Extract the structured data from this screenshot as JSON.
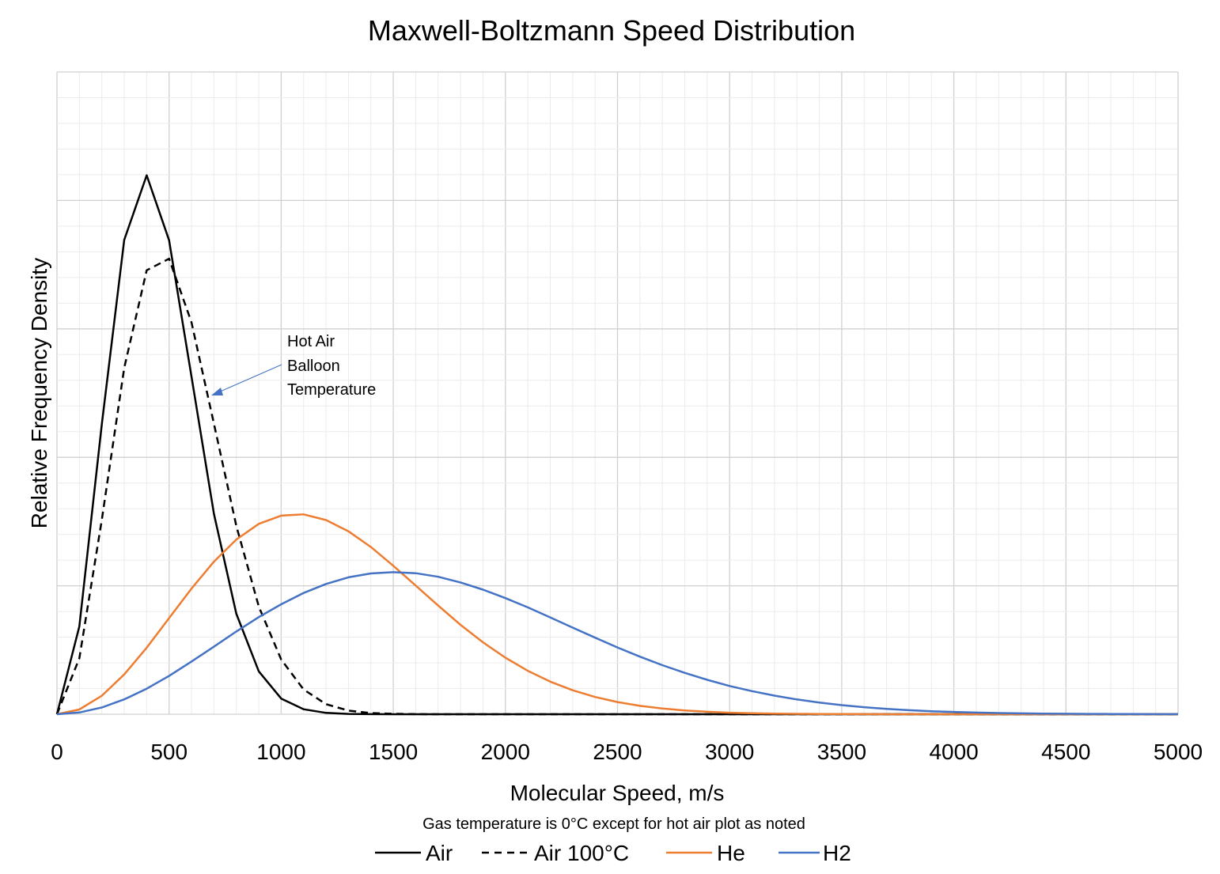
{
  "chart_data": {
    "type": "line",
    "title": "Maxwell-Boltzmann Speed Distribution",
    "xlabel": "Molecular Speed, m/s",
    "ylabel": "Relative Frequency Density",
    "note": "Gas temperature is 0°C except for hot air plot as noted",
    "xlim": [
      0,
      5000
    ],
    "ylim": [
      0,
      0.0025
    ],
    "x_major_step": 500,
    "x_minor_step": 100,
    "y_major_step": 0.0005,
    "y_minor_step": 0.0001,
    "grid": true,
    "y_tick_labels_shown": false,
    "xticks": [
      "0",
      "500",
      "1000",
      "1500",
      "2000",
      "2500",
      "3000",
      "3500",
      "4000",
      "4500",
      "5000"
    ],
    "legend_position": "bottom",
    "annotation": {
      "lines": [
        "Hot Air",
        "Balloon",
        "Temperature"
      ],
      "points_to_series": "Air 100°C",
      "arrow_color": "#4472c4"
    },
    "series": [
      {
        "name": "Air",
        "color": "#000000",
        "dash": "solid",
        "points": [
          [
            0,
            0
          ],
          [
            100,
            0.000342
          ],
          [
            200,
            0.001129
          ],
          [
            300,
            0.001846
          ],
          [
            400,
            0.002098
          ],
          [
            500,
            0.001845
          ],
          [
            600,
            0.001315
          ],
          [
            700,
            0.00078
          ],
          [
            800,
            0.000391
          ],
          [
            900,
            0.000167
          ],
          [
            1000,
            6.11e-05
          ],
          [
            1100,
            1.93e-05
          ],
          [
            1200,
            5.3e-06
          ],
          [
            1300,
            1.3e-06
          ],
          [
            1400,
            3e-07
          ],
          [
            1500,
            0
          ],
          [
            5000,
            0
          ]
        ]
      },
      {
        "name": "Air 100°C",
        "color": "#000000",
        "dash": "dashed",
        "points": [
          [
            0,
            0
          ],
          [
            100,
            0.000218
          ],
          [
            200,
            0.000757
          ],
          [
            300,
            0.001348
          ],
          [
            400,
            0.001728
          ],
          [
            500,
            0.001773
          ],
          [
            600,
            0.001526
          ],
          [
            700,
            0.001131
          ],
          [
            800,
            0.000733
          ],
          [
            900,
            0.000419
          ],
          [
            1000,
            0.000213
          ],
          [
            1100,
            9.63e-05
          ],
          [
            1200,
            3.91e-05
          ],
          [
            1300,
            1.43e-05
          ],
          [
            1400,
            4.7e-06
          ],
          [
            1500,
            1.4e-06
          ],
          [
            1600,
            4e-07
          ],
          [
            1700,
            0
          ],
          [
            5000,
            0
          ]
        ]
      },
      {
        "name": "He",
        "color": "#ed7d31",
        "dash": "solid",
        "points": [
          [
            0,
            0
          ],
          [
            100,
            1.85e-05
          ],
          [
            200,
            7.21e-05
          ],
          [
            300,
            0.000155
          ],
          [
            400,
            0.000259
          ],
          [
            500,
            0.000374
          ],
          [
            600,
            0.000489
          ],
          [
            700,
            0.000594
          ],
          [
            800,
            0.00068
          ],
          [
            900,
            0.000741
          ],
          [
            1000,
            0.000773
          ],
          [
            1100,
            0.000778
          ],
          [
            1200,
            0.000756
          ],
          [
            1300,
            0.000712
          ],
          [
            1400,
            0.000651
          ],
          [
            1500,
            0.000578
          ],
          [
            1600,
            0.000501
          ],
          [
            1700,
            0.000423
          ],
          [
            1800,
            0.000348
          ],
          [
            1900,
            0.00028
          ],
          [
            2000,
            0.00022
          ],
          [
            2100,
            0.000169
          ],
          [
            2200,
            0.000127
          ],
          [
            2300,
            9.34e-05
          ],
          [
            2400,
            6.72e-05
          ],
          [
            2500,
            4.74e-05
          ],
          [
            2600,
            3.27e-05
          ],
          [
            2700,
            2.21e-05
          ],
          [
            2800,
            1.46e-05
          ],
          [
            2900,
            9.5e-06
          ],
          [
            3000,
            6e-06
          ],
          [
            3100,
            3.8e-06
          ],
          [
            3200,
            2.3e-06
          ],
          [
            3300,
            1.4e-06
          ],
          [
            3400,
            8e-07
          ],
          [
            3500,
            5e-07
          ],
          [
            3600,
            3e-07
          ],
          [
            3700,
            0
          ],
          [
            5000,
            0
          ]
        ]
      },
      {
        "name": "H2",
        "color": "#4472c4",
        "dash": "solid",
        "points": [
          [
            0,
            0
          ],
          [
            100,
            6.65e-06
          ],
          [
            200,
            2.62e-05
          ],
          [
            300,
            5.78e-05
          ],
          [
            400,
            9.95e-05
          ],
          [
            500,
            0.000149
          ],
          [
            600,
            0.000205
          ],
          [
            700,
            0.000263
          ],
          [
            800,
            0.000322
          ],
          [
            900,
            0.000378
          ],
          [
            1000,
            0.000428
          ],
          [
            1100,
            0.000472
          ],
          [
            1200,
            0.000507
          ],
          [
            1300,
            0.000533
          ],
          [
            1400,
            0.000548
          ],
          [
            1500,
            0.000553
          ],
          [
            1600,
            0.000549
          ],
          [
            1700,
            0.000535
          ],
          [
            1800,
            0.000513
          ],
          [
            1900,
            0.000485
          ],
          [
            2000,
            0.000452
          ],
          [
            2100,
            0.000416
          ],
          [
            2200,
            0.000377
          ],
          [
            2300,
            0.000337
          ],
          [
            2400,
            0.000298
          ],
          [
            2500,
            0.00026
          ],
          [
            2600,
            0.000224
          ],
          [
            2700,
            0.000191
          ],
          [
            2800,
            0.000161
          ],
          [
            2900,
            0.000134
          ],
          [
            3000,
            0.00011
          ],
          [
            3100,
            8.99e-05
          ],
          [
            3200,
            7.24e-05
          ],
          [
            3300,
            5.77e-05
          ],
          [
            3400,
            4.55e-05
          ],
          [
            3500,
            3.55e-05
          ],
          [
            3600,
            2.74e-05
          ],
          [
            3700,
            2.09e-05
          ],
          [
            3800,
            1.58e-05
          ],
          [
            3900,
            1.18e-05
          ],
          [
            4000,
            8.8e-06
          ],
          [
            4100,
            6.4e-06
          ],
          [
            4200,
            4.7e-06
          ],
          [
            4300,
            3.4e-06
          ],
          [
            4400,
            2.4e-06
          ],
          [
            4500,
            1.7e-06
          ],
          [
            4600,
            1.2e-06
          ],
          [
            4700,
            8e-07
          ],
          [
            4800,
            6e-07
          ],
          [
            4900,
            4e-07
          ],
          [
            5000,
            3e-07
          ]
        ]
      }
    ]
  }
}
